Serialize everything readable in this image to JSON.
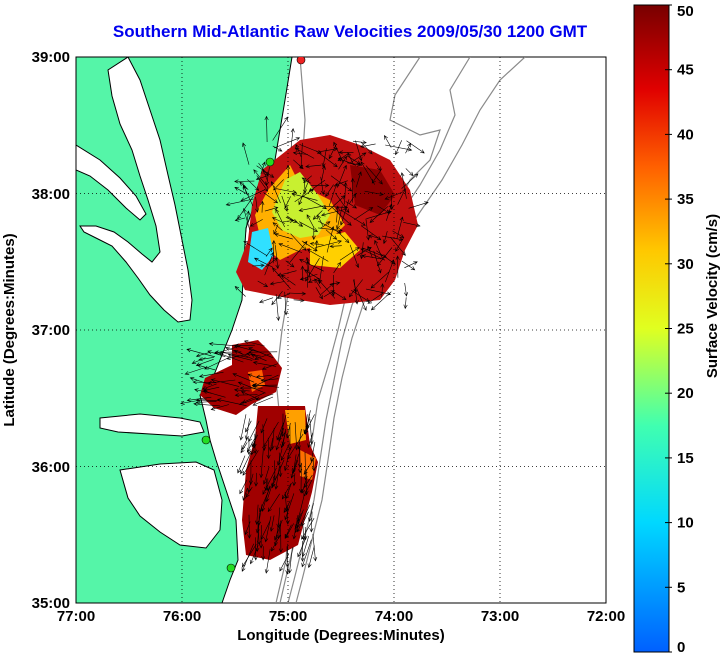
{
  "title": "Southern Mid-Atlantic Raw Velocities 2009/05/30 1200 GMT",
  "xlabel": "Longitude (Degrees:Minutes)",
  "ylabel": "Latitude (Degrees:Minutes)",
  "colorbar": {
    "label": "Surface Velocity (cm/s)",
    "min": 0,
    "max": 50,
    "ticks": [
      "0",
      "5",
      "10",
      "15",
      "20",
      "25",
      "30",
      "35",
      "40",
      "45",
      "50"
    ]
  },
  "x_ticks": [
    "77:00",
    "76:00",
    "75:00",
    "74:00",
    "73:00",
    "72:00"
  ],
  "y_ticks": [
    "35:00",
    "36:00",
    "37:00",
    "38:00",
    "39:00"
  ],
  "colors": {
    "land": "#55f5a8",
    "title": "#0000ee",
    "bathymetry": "#8a8a8a"
  }
}
